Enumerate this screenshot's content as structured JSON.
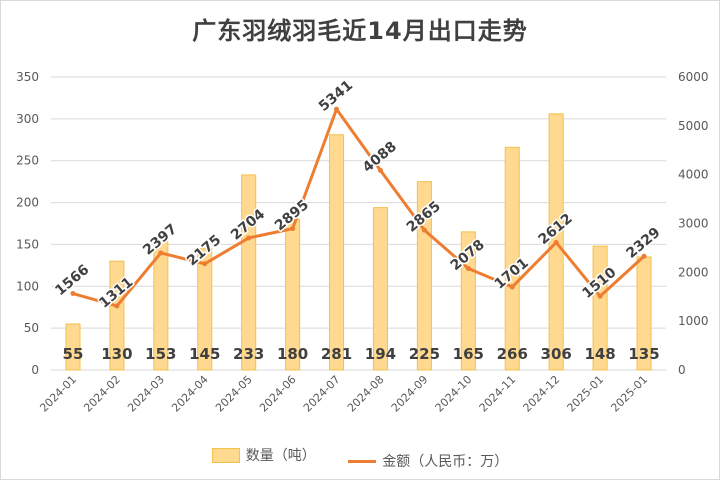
{
  "chart_data": {
    "type": "bar+line",
    "title": "广东羽绒羽毛近14月出口走势",
    "categories": [
      "2024-01",
      "2024-02",
      "2024-03",
      "2024-04",
      "2024-05",
      "2024-06",
      "2024-07",
      "2024-08",
      "2024-09",
      "2024-10",
      "2024-11",
      "2024-12",
      "2025-01",
      "2025-01"
    ],
    "series": [
      {
        "name": "数量（吨）",
        "type": "bar",
        "axis": "left",
        "values": [
          55,
          130,
          153,
          145,
          233,
          180,
          281,
          194,
          225,
          165,
          266,
          306,
          148,
          135
        ]
      },
      {
        "name": "金额（人民币：万）",
        "type": "line",
        "axis": "right",
        "values": [
          1566,
          1311,
          2397,
          2175,
          2704,
          2895,
          5341,
          4088,
          2865,
          2078,
          1701,
          2612,
          1510,
          2329
        ]
      }
    ],
    "y_left": {
      "min": 0,
      "max": 350,
      "ticks": [
        "0",
        "50",
        "100",
        "150",
        "200",
        "250",
        "300",
        "350"
      ]
    },
    "y_right": {
      "min": 0,
      "max": 6000,
      "ticks": [
        "0",
        "1000",
        "2000",
        "3000",
        "4000",
        "5000",
        "6000"
      ]
    },
    "legend_position": "bottom",
    "colors": {
      "bar_fill": "#ffd98f",
      "bar_stroke": "#f2c14e",
      "line": "#ed7d31"
    }
  }
}
